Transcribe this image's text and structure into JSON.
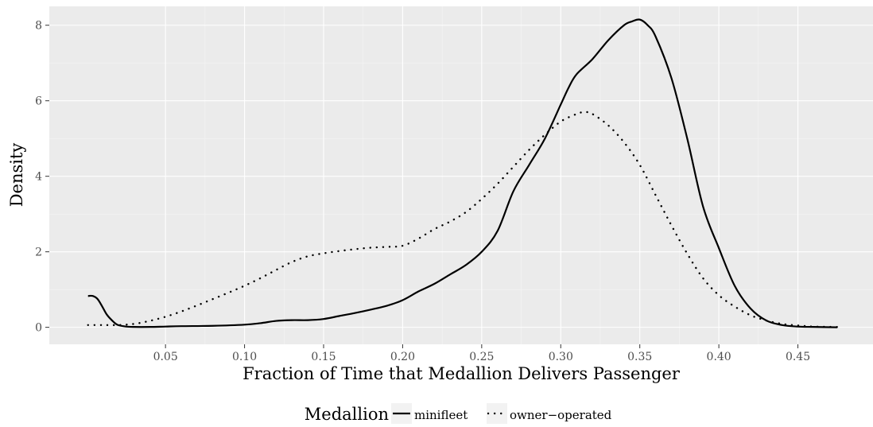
{
  "chart_data": {
    "type": "line",
    "chart_kind": "density",
    "xlabel": "Fraction of Time that Medallion Delivers Passenger",
    "ylabel": "Density",
    "xlim": [
      -0.0235,
      0.4975
    ],
    "ylim": [
      -0.45,
      8.5
    ],
    "x_ticks": [
      0.05,
      0.1,
      0.15,
      0.2,
      0.25,
      0.3,
      0.35,
      0.4,
      0.45
    ],
    "x_tick_labels": [
      "0.05",
      "0.10",
      "0.15",
      "0.20",
      "0.25",
      "0.30",
      "0.35",
      "0.40",
      "0.45"
    ],
    "y_ticks": [
      0,
      2,
      4,
      6,
      8
    ],
    "y_tick_labels": [
      "0",
      "2",
      "4",
      "6",
      "8"
    ],
    "grid": true,
    "legend": {
      "title": "Medallion",
      "placement": "bottom"
    },
    "colors": {
      "panel_background": "#ebebeb",
      "grid_major": "#ffffff",
      "grid_minor": "#f5f5f5",
      "line": "#000000",
      "tick_text": "#4d4d4d"
    },
    "series": [
      {
        "name": "minifleet",
        "line_style": "solid",
        "x": [
          0.001,
          0.004,
          0.007,
          0.01,
          0.013,
          0.017,
          0.02,
          0.025,
          0.03,
          0.04,
          0.05,
          0.06,
          0.08,
          0.1,
          0.11,
          0.12,
          0.13,
          0.14,
          0.15,
          0.16,
          0.17,
          0.18,
          0.19,
          0.2,
          0.21,
          0.22,
          0.23,
          0.24,
          0.25,
          0.26,
          0.27,
          0.28,
          0.29,
          0.3,
          0.305,
          0.31,
          0.32,
          0.33,
          0.34,
          0.345,
          0.35,
          0.355,
          0.36,
          0.37,
          0.38,
          0.39,
          0.4,
          0.41,
          0.42,
          0.43,
          0.44,
          0.45,
          0.46,
          0.475
        ],
        "y": [
          0.83,
          0.83,
          0.75,
          0.55,
          0.33,
          0.15,
          0.06,
          0.02,
          0.01,
          0.01,
          0.02,
          0.03,
          0.04,
          0.07,
          0.11,
          0.17,
          0.19,
          0.19,
          0.22,
          0.3,
          0.38,
          0.47,
          0.57,
          0.72,
          0.95,
          1.15,
          1.4,
          1.65,
          2.0,
          2.55,
          3.6,
          4.3,
          5.0,
          5.9,
          6.35,
          6.7,
          7.1,
          7.6,
          8.0,
          8.1,
          8.15,
          8.0,
          7.7,
          6.6,
          5.0,
          3.2,
          2.1,
          1.1,
          0.5,
          0.18,
          0.06,
          0.02,
          0.01,
          0.0
        ]
      },
      {
        "name": "owner−operated",
        "line_style": "dotted",
        "x": [
          0.001,
          0.01,
          0.02,
          0.03,
          0.04,
          0.05,
          0.06,
          0.07,
          0.08,
          0.09,
          0.1,
          0.11,
          0.12,
          0.13,
          0.14,
          0.15,
          0.16,
          0.17,
          0.18,
          0.19,
          0.2,
          0.21,
          0.22,
          0.23,
          0.24,
          0.25,
          0.26,
          0.27,
          0.28,
          0.29,
          0.3,
          0.31,
          0.315,
          0.32,
          0.33,
          0.34,
          0.35,
          0.36,
          0.37,
          0.38,
          0.39,
          0.4,
          0.41,
          0.42,
          0.43,
          0.44,
          0.45,
          0.46,
          0.475
        ],
        "y": [
          0.06,
          0.06,
          0.06,
          0.09,
          0.17,
          0.28,
          0.42,
          0.58,
          0.75,
          0.92,
          1.1,
          1.3,
          1.52,
          1.73,
          1.88,
          1.96,
          2.02,
          2.07,
          2.11,
          2.13,
          2.16,
          2.35,
          2.6,
          2.8,
          3.05,
          3.4,
          3.8,
          4.25,
          4.7,
          5.1,
          5.45,
          5.65,
          5.7,
          5.65,
          5.35,
          4.9,
          4.3,
          3.5,
          2.7,
          1.95,
          1.3,
          0.85,
          0.55,
          0.32,
          0.18,
          0.09,
          0.05,
          0.02,
          0.01
        ]
      }
    ]
  }
}
